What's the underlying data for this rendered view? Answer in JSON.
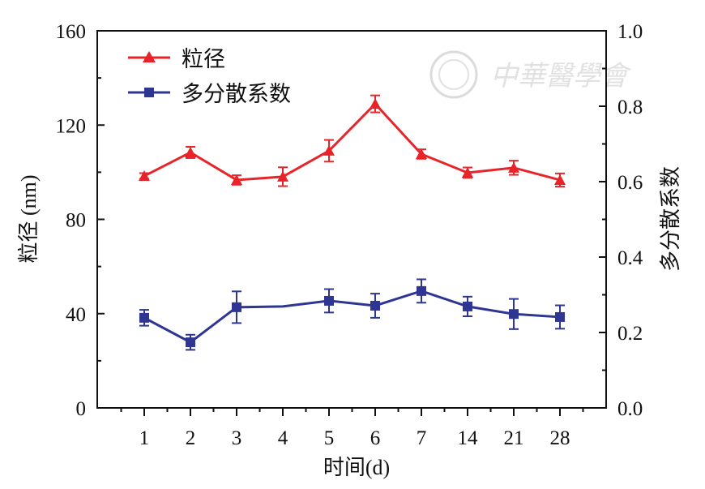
{
  "watermark": "中華醫學會",
  "chart_data": {
    "type": "line",
    "title": "",
    "xlabel": "时间(d)",
    "ylabel": "粒径 (nm)",
    "y2label": "多分散系数",
    "categories": [
      "1",
      "2",
      "3",
      "4",
      "5",
      "6",
      "7",
      "14",
      "21",
      "28"
    ],
    "ylim": [
      0,
      160
    ],
    "y2lim": [
      0,
      1.0
    ],
    "yticks": [
      "0",
      "40",
      "80",
      "120",
      "160"
    ],
    "y2ticks": [
      "0.0",
      "0.2",
      "0.4",
      "0.6",
      "0.8",
      "1.0"
    ],
    "grid": false,
    "legend": "top-left",
    "series": [
      {
        "name": "粒径",
        "axis": "left",
        "color": "#e8242a",
        "marker": "triangle",
        "values": [
          98.4,
          108.4,
          96.7,
          98.1,
          109.1,
          129.0,
          107.7,
          99.8,
          101.9,
          96.7
        ],
        "errors": [
          1.2,
          2.4,
          2.0,
          4.0,
          4.6,
          3.6,
          2.0,
          2.2,
          3.0,
          2.8
        ]
      },
      {
        "name": "多分散系数",
        "axis": "right",
        "color": "#2e3592",
        "marker": "square",
        "values": [
          0.239,
          0.174,
          0.267,
          0.269,
          0.284,
          0.271,
          0.31,
          0.269,
          0.249,
          0.241
        ],
        "errors": [
          0.021,
          0.02,
          0.042,
          null,
          0.031,
          0.032,
          0.031,
          0.026,
          0.04,
          0.031
        ]
      }
    ]
  }
}
